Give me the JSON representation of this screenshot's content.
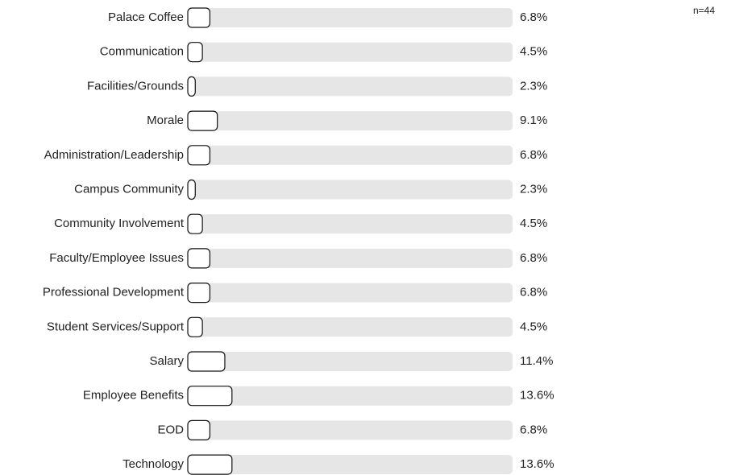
{
  "chart_data": {
    "type": "bar",
    "orientation": "horizontal",
    "annotation": "n=44",
    "categories": [
      "Palace Coffee",
      "Communication",
      "Facilities/Grounds",
      "Morale",
      "Administration/Leadership",
      "Campus Community",
      "Community Involvement",
      "Faculty/Employee Issues",
      "Professional Development",
      "Student Services/Support",
      "Salary",
      "Employee Benefits",
      "EOD",
      "Technology"
    ],
    "values": [
      6.8,
      4.5,
      2.3,
      9.1,
      6.8,
      2.3,
      4.5,
      6.8,
      6.8,
      4.5,
      11.4,
      13.6,
      6.8,
      13.6
    ],
    "value_labels": [
      "6.8%",
      "4.5%",
      "2.3%",
      "9.1%",
      "6.8%",
      "2.3%",
      "4.5%",
      "6.8%",
      "6.8%",
      "4.5%",
      "11.4%",
      "13.6%",
      "6.8%",
      "13.6%"
    ],
    "color": "#ffffff",
    "track_color": "#e6e6e6",
    "xlim": [
      0,
      100
    ]
  }
}
